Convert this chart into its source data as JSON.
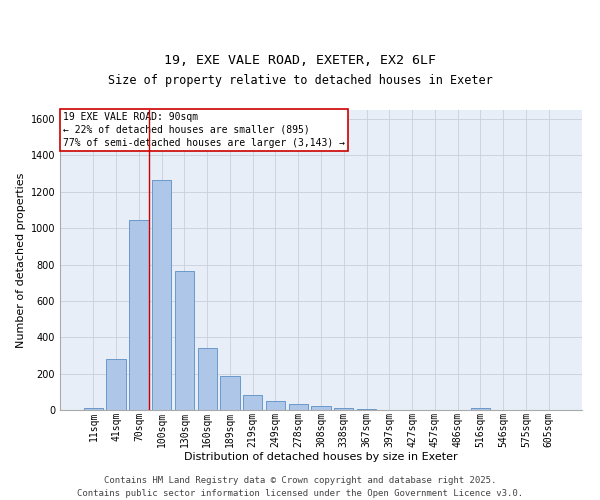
{
  "title1": "19, EXE VALE ROAD, EXETER, EX2 6LF",
  "title2": "Size of property relative to detached houses in Exeter",
  "xlabel": "Distribution of detached houses by size in Exeter",
  "ylabel": "Number of detached properties",
  "categories": [
    "11sqm",
    "41sqm",
    "70sqm",
    "100sqm",
    "130sqm",
    "160sqm",
    "189sqm",
    "219sqm",
    "249sqm",
    "278sqm",
    "308sqm",
    "338sqm",
    "367sqm",
    "397sqm",
    "427sqm",
    "457sqm",
    "486sqm",
    "516sqm",
    "546sqm",
    "575sqm",
    "605sqm"
  ],
  "values": [
    10,
    280,
    1045,
    1265,
    765,
    340,
    185,
    80,
    47,
    33,
    22,
    13,
    5,
    2,
    0,
    0,
    0,
    10,
    0,
    0,
    0
  ],
  "bar_color": "#aec6e8",
  "bar_edge_color": "#5a8fc4",
  "vline_color": "#cc0000",
  "annotation_text": "19 EXE VALE ROAD: 90sqm\n← 22% of detached houses are smaller (895)\n77% of semi-detached houses are larger (3,143) →",
  "annotation_box_color": "#cc0000",
  "ylim": [
    0,
    1650
  ],
  "yticks": [
    0,
    200,
    400,
    600,
    800,
    1000,
    1200,
    1400,
    1600
  ],
  "grid_color": "#c8d0dc",
  "bg_color": "#e8eef7",
  "footer_text": "Contains HM Land Registry data © Crown copyright and database right 2025.\nContains public sector information licensed under the Open Government Licence v3.0.",
  "title_fontsize": 9.5,
  "subtitle_fontsize": 8.5,
  "axis_label_fontsize": 8,
  "tick_fontsize": 7,
  "annotation_fontsize": 7,
  "footer_fontsize": 6.5
}
